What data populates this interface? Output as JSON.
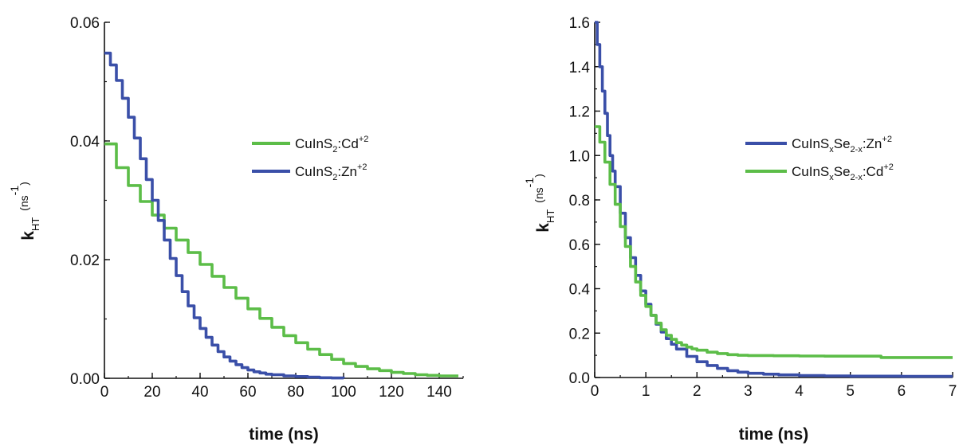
{
  "chart_data": [
    {
      "type": "line",
      "xlabel": "time (ns)",
      "ylabel": "k_HT (ns^-1)",
      "xlim": [
        0,
        150
      ],
      "ylim": [
        0,
        0.06
      ],
      "x_ticks": [
        "0",
        "20",
        "40",
        "60",
        "80",
        "100",
        "120",
        "140"
      ],
      "y_ticks": [
        "0.00",
        "0.02",
        "0.04",
        "0.06"
      ],
      "legend": [
        {
          "base": "CuInS",
          "sub": "2",
          "mid": ":Cd",
          "sup": "+2",
          "color": "#5cbd48"
        },
        {
          "base": "CuInS",
          "sub": "2",
          "mid": ":Zn",
          "sup": "+2",
          "color": "#3a4fa8"
        }
      ],
      "series": [
        {
          "name": "CuInS2:Cd+2",
          "color": "#5cbd48",
          "step": true,
          "x": [
            0,
            5,
            10,
            15,
            20,
            25,
            30,
            35,
            40,
            45,
            50,
            55,
            60,
            65,
            70,
            75,
            80,
            85,
            90,
            95,
            100,
            105,
            110,
            115,
            120,
            125,
            130,
            135,
            140,
            145,
            148
          ],
          "y": [
            0.0395,
            0.0355,
            0.0325,
            0.0298,
            0.0275,
            0.0253,
            0.0233,
            0.0212,
            0.0192,
            0.0172,
            0.0153,
            0.0135,
            0.0117,
            0.0101,
            0.0086,
            0.0072,
            0.006,
            0.0049,
            0.004,
            0.0032,
            0.0025,
            0.002,
            0.0016,
            0.0013,
            0.001,
            0.0008,
            0.0006,
            0.0005,
            0.0004,
            0.0004,
            0.0004
          ]
        },
        {
          "name": "CuInS2:Zn+2",
          "color": "#3a4fa8",
          "step": true,
          "x": [
            0,
            2.5,
            5,
            7.5,
            10,
            12.5,
            15,
            17.5,
            20,
            22.5,
            25,
            27.5,
            30,
            32.5,
            35,
            37.5,
            40,
            42.5,
            45,
            47.5,
            50,
            52.5,
            55,
            57.5,
            60,
            62.5,
            65,
            67.5,
            70,
            75,
            80,
            85,
            90,
            95,
            100
          ],
          "y": [
            0.0548,
            0.0528,
            0.0502,
            0.0472,
            0.044,
            0.0405,
            0.037,
            0.0335,
            0.03,
            0.0266,
            0.0233,
            0.0202,
            0.0173,
            0.0146,
            0.0122,
            0.0102,
            0.0084,
            0.0069,
            0.0056,
            0.0045,
            0.0036,
            0.0029,
            0.0023,
            0.0018,
            0.0014,
            0.0011,
            0.0009,
            0.0007,
            0.0006,
            0.0004,
            0.0003,
            0.0002,
            0.0001,
            5e-05,
            0.0
          ]
        }
      ]
    },
    {
      "type": "line",
      "xlabel": "time (ns)",
      "ylabel": "k_HT (ns^-1)",
      "xlim": [
        0,
        7
      ],
      "ylim": [
        0,
        1.6
      ],
      "x_ticks": [
        "0",
        "1",
        "2",
        "3",
        "4",
        "5",
        "6",
        "7"
      ],
      "y_ticks": [
        "0.0",
        "0.2",
        "0.4",
        "0.6",
        "0.8",
        "1.0",
        "1.2",
        "1.4",
        "1.6"
      ],
      "legend": [
        {
          "base": "CuInS",
          "sub": "x",
          "mid2": "Se",
          "sub2": "2-x",
          "mid": ":Zn",
          "sup": "+2",
          "color": "#3a4fa8"
        },
        {
          "base": "CuInS",
          "sub": "x",
          "mid2": "Se",
          "sub2": "2-x",
          "mid": ":Cd",
          "sup": "+2",
          "color": "#5cbd48"
        }
      ],
      "series": [
        {
          "name": "CuInSxSe2-x:Zn+2",
          "color": "#3a4fa8",
          "step": true,
          "x": [
            0,
            0.05,
            0.1,
            0.15,
            0.2,
            0.25,
            0.3,
            0.35,
            0.4,
            0.5,
            0.6,
            0.7,
            0.8,
            0.9,
            1.0,
            1.1,
            1.2,
            1.3,
            1.4,
            1.5,
            1.6,
            1.8,
            2.0,
            2.2,
            2.4,
            2.6,
            2.8,
            3.0,
            3.3,
            3.6,
            4.0,
            4.5,
            5.0,
            6.0,
            7.0
          ],
          "y": [
            1.6,
            1.5,
            1.4,
            1.29,
            1.19,
            1.09,
            1.0,
            0.93,
            0.86,
            0.74,
            0.63,
            0.54,
            0.46,
            0.39,
            0.33,
            0.28,
            0.24,
            0.205,
            0.175,
            0.15,
            0.128,
            0.095,
            0.071,
            0.054,
            0.041,
            0.031,
            0.024,
            0.019,
            0.015,
            0.012,
            0.009,
            0.007,
            0.006,
            0.005,
            0.005
          ]
        },
        {
          "name": "CuInSxSe2-x:Cd+2",
          "color": "#5cbd48",
          "step": true,
          "x": [
            0,
            0.1,
            0.2,
            0.3,
            0.4,
            0.5,
            0.6,
            0.7,
            0.8,
            0.9,
            1.0,
            1.1,
            1.2,
            1.3,
            1.4,
            1.5,
            1.6,
            1.7,
            1.8,
            1.9,
            2.0,
            2.2,
            2.4,
            2.6,
            2.8,
            3.0,
            3.5,
            4.0,
            4.5,
            5.0,
            5.5,
            5.6,
            6.0,
            6.5,
            7.0
          ],
          "y": [
            1.13,
            1.06,
            0.97,
            0.87,
            0.78,
            0.68,
            0.59,
            0.5,
            0.43,
            0.37,
            0.32,
            0.28,
            0.245,
            0.215,
            0.19,
            0.172,
            0.157,
            0.146,
            0.137,
            0.129,
            0.123,
            0.114,
            0.108,
            0.103,
            0.1,
            0.099,
            0.098,
            0.097,
            0.096,
            0.096,
            0.096,
            0.09,
            0.09,
            0.09,
            0.09
          ]
        }
      ]
    }
  ]
}
